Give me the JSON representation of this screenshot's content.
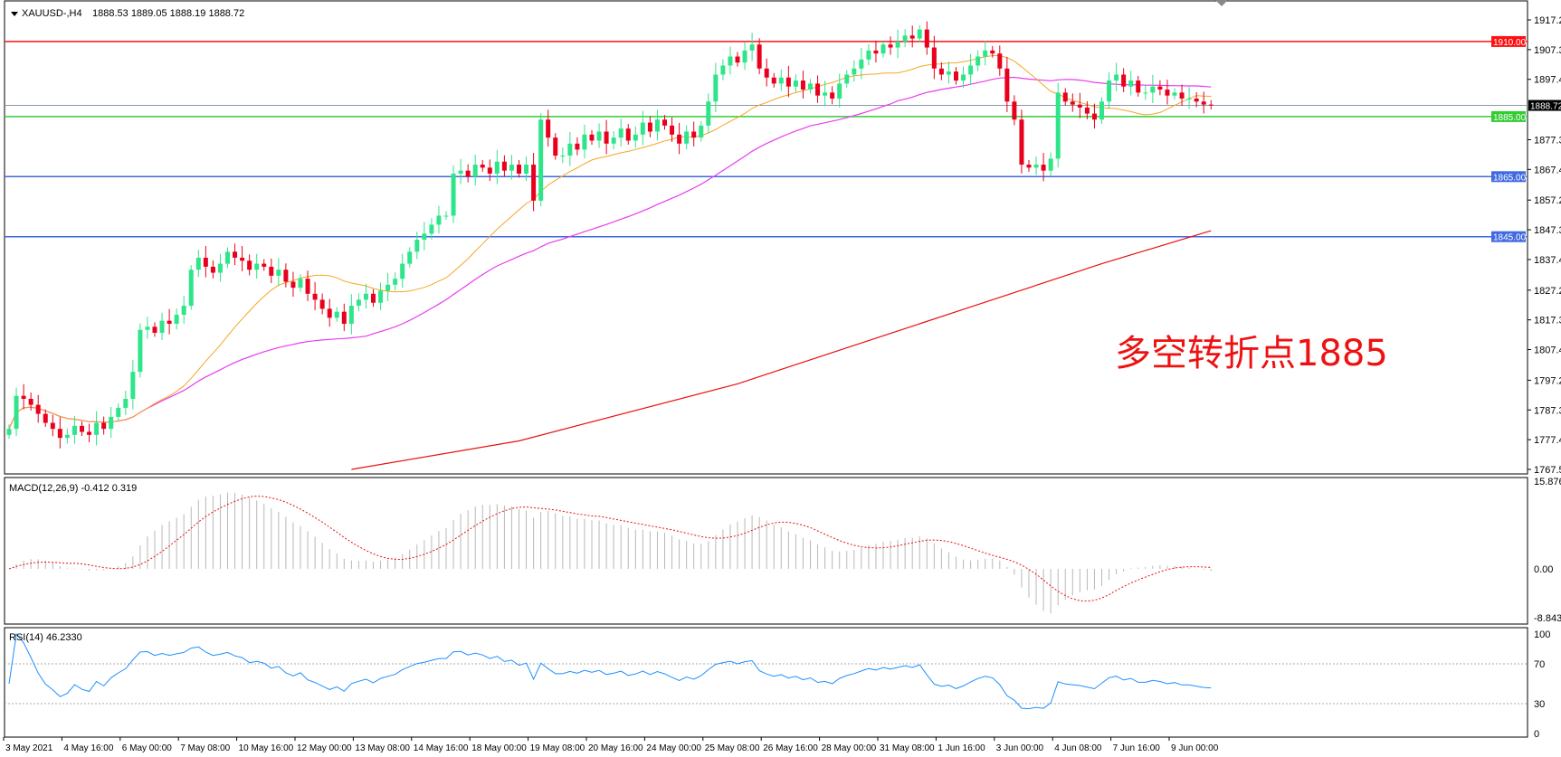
{
  "header": {
    "symbol_label": "XAUUSD-,H4",
    "ohlc": "1888.53 1889.05 1888.19 1888.72"
  },
  "annotation": {
    "text": "多空转折点1885",
    "color": "#ee1111"
  },
  "colors": {
    "bull": "#2ee58a",
    "bear": "#e8001c",
    "ma_fast": "#f5a623",
    "ma_mid": "#e83cf0",
    "ma_slow": "#e81010",
    "macd_hist": "#b8b8b8",
    "macd_signal": "#e81010",
    "rsi": "#1e90ff"
  },
  "chart_data": [
    {
      "type": "candlestick",
      "title": "XAUUSD-,H4",
      "ylim": [
        1767.5,
        1917.2
      ],
      "yticks": [
        "1917.20",
        "1907.30",
        "1897.40",
        "1877.30",
        "1867.40",
        "1857.20",
        "1847.30",
        "1837.40",
        "1827.20",
        "1817.30",
        "1807.40",
        "1797.20",
        "1787.30",
        "1777.40",
        "1767.50"
      ],
      "current_price": "1888.72",
      "horizontal_lines": [
        {
          "value": "1910.00",
          "color": "#ff1010"
        },
        {
          "value": "1885.00",
          "color": "#33cc33"
        },
        {
          "value": "1865.00",
          "color": "#4169e1"
        },
        {
          "value": "1845.00",
          "color": "#4169e1"
        }
      ],
      "xtick_labels": [
        "3 May 2021",
        "4 May 16:00",
        "6 May 00:00",
        "7 May 08:00",
        "10 May 16:00",
        "12 May 00:00",
        "13 May 08:00",
        "14 May 16:00",
        "18 May 00:00",
        "19 May 08:00",
        "20 May 16:00",
        "24 May 00:00",
        "25 May 08:00",
        "26 May 16:00",
        "28 May 00:00",
        "31 May 08:00",
        "1 Jun 16:00",
        "3 Jun 00:00",
        "4 Jun 08:00",
        "7 Jun 16:00",
        "9 Jun 00:00"
      ],
      "bars_per_xtick": 8,
      "close": [
        1781,
        1792,
        1791,
        1789,
        1786,
        1783,
        1781,
        1778,
        1779,
        1782,
        1780,
        1779,
        1783,
        1781,
        1785,
        1788,
        1791,
        1800,
        1814,
        1815,
        1813,
        1817,
        1816,
        1819,
        1822,
        1834,
        1838,
        1835,
        1833,
        1836,
        1840,
        1838,
        1837,
        1834,
        1836,
        1835,
        1832,
        1834,
        1830,
        1828,
        1831,
        1826,
        1824,
        1821,
        1818,
        1820,
        1816,
        1822,
        1824,
        1826,
        1823,
        1827,
        1829,
        1831,
        1836,
        1840,
        1844,
        1846,
        1849,
        1852,
        1852,
        1866,
        1867,
        1865,
        1869,
        1868,
        1866,
        1870,
        1867,
        1869,
        1866,
        1869,
        1857,
        1884,
        1878,
        1872,
        1872,
        1876,
        1874,
        1879,
        1877,
        1880,
        1876,
        1878,
        1881,
        1877,
        1879,
        1883,
        1880,
        1884,
        1882,
        1879,
        1876,
        1880,
        1878,
        1882,
        1890,
        1899,
        1902,
        1905,
        1903,
        1907,
        1909,
        1901,
        1898,
        1896,
        1898,
        1895,
        1897,
        1894,
        1896,
        1892,
        1893,
        1891,
        1896,
        1899,
        1901,
        1904,
        1907,
        1906,
        1909,
        1908,
        1910,
        1912,
        1911,
        1914,
        1908,
        1901,
        1899,
        1900,
        1897,
        1899,
        1902,
        1905,
        1907,
        1906,
        1901,
        1890,
        1884,
        1869,
        1868,
        1869,
        1867,
        1871,
        1893,
        1890,
        1889,
        1888,
        1886,
        1884,
        1890,
        1897,
        1899,
        1895,
        1897,
        1893,
        1893,
        1895,
        1894,
        1892,
        1893,
        1891,
        1891,
        1890,
        1889,
        1888.72
      ],
      "ma_slow_points": [
        [
          47,
          1767.5
        ],
        [
          70,
          1777
        ],
        [
          100,
          1796
        ],
        [
          130,
          1820
        ],
        [
          150,
          1836
        ],
        [
          165,
          1847
        ]
      ]
    },
    {
      "type": "macd",
      "label": "MACD(12,26,9) -0.412 0.319",
      "ylim": [
        -8.843,
        15.876
      ],
      "yticks": [
        "15.876",
        "0.00",
        "-8.843"
      ]
    },
    {
      "type": "line",
      "label": "RSI(14) 46.2330",
      "ylim": [
        0,
        100
      ],
      "yticks": [
        "100",
        "70",
        "30",
        "0"
      ],
      "levels": [
        70,
        30
      ]
    }
  ]
}
